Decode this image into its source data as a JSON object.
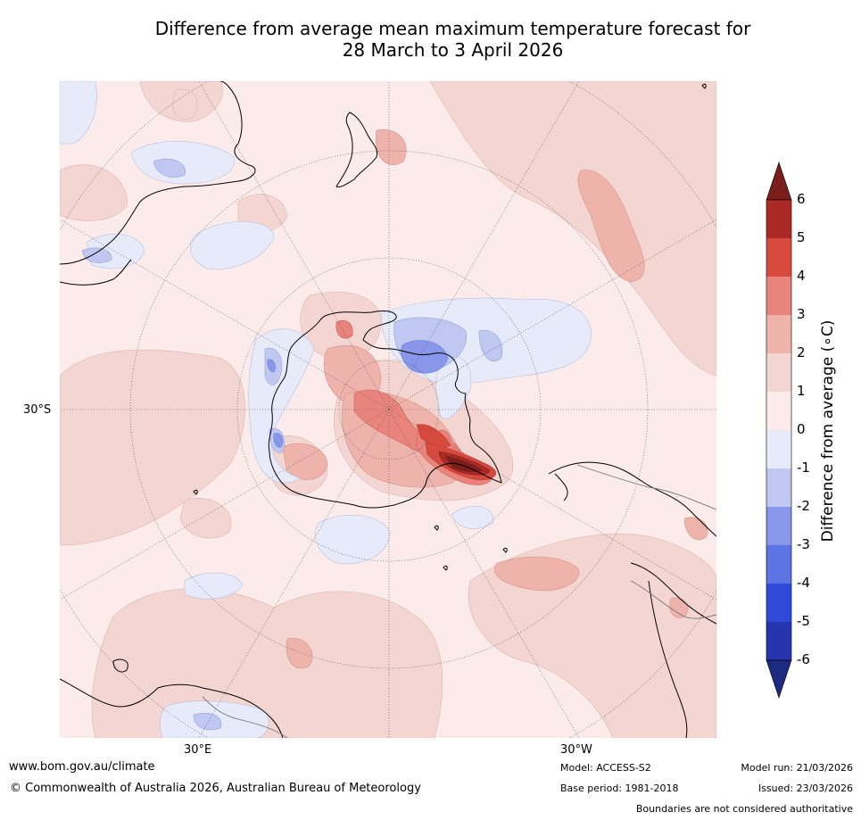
{
  "title": {
    "line1": "Difference from average mean maximum temperature forecast for",
    "line2": "28 March to 3 April 2026"
  },
  "map": {
    "projection": "south-polar-stereographic",
    "axis_labels": {
      "left": "30°S",
      "bottom_left": "30°E",
      "bottom_right": "30°W"
    }
  },
  "colorbar": {
    "title": "Difference from average (∘C)",
    "ticks": [
      "6",
      "5",
      "4",
      "3",
      "2",
      "1",
      "0",
      "-1",
      "-2",
      "-3",
      "-4",
      "-5",
      "-6"
    ],
    "colors": [
      "#7b1d1a",
      "#ab2a26",
      "#d84a3e",
      "#e8847b",
      "#eeb3ab",
      "#f3d5d1",
      "#fbeceb",
      "#e7ebf9",
      "#c0c8f1",
      "#8897ea",
      "#5c74e4",
      "#2f4ad9",
      "#2535ae",
      "#1d2a82"
    ]
  },
  "footer": {
    "url": "www.bom.gov.au/climate",
    "copyright": "© Commonwealth of Australia 2026, Australian Bureau of Meteorology",
    "model": "Model: ACCESS-S2",
    "base_period": "Base period: 1981-2018",
    "model_run": "Model run: 21/03/2026",
    "issued": "Issued: 23/03/2026",
    "boundaries": "Boundaries are not considered authoritative"
  }
}
